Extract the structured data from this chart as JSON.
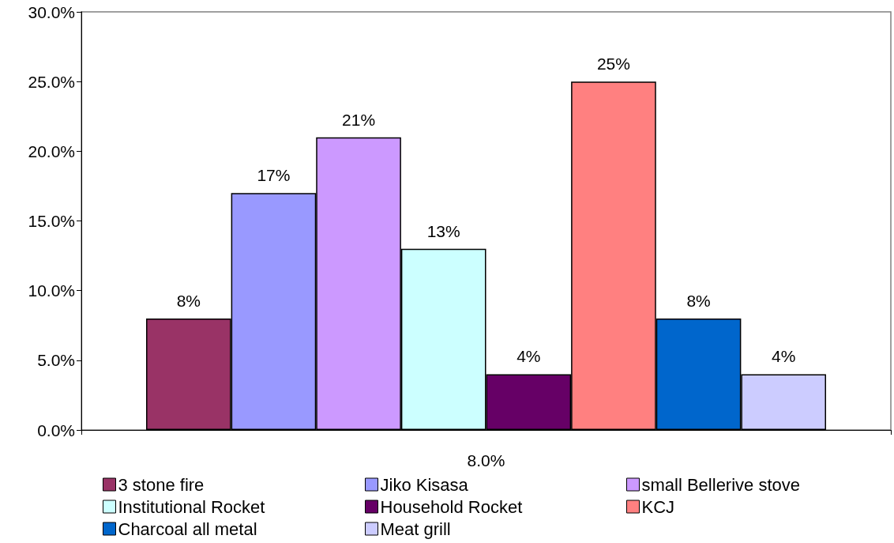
{
  "chart_data": {
    "type": "bar",
    "categories": [
      "8.0%"
    ],
    "series": [
      {
        "name": "3 stone fire",
        "color": "#993366",
        "values": [
          8
        ],
        "value_labels": [
          "8%"
        ]
      },
      {
        "name": "Jiko Kisasa",
        "color": "#9999ff",
        "values": [
          17
        ],
        "value_labels": [
          "17%"
        ]
      },
      {
        "name": "small Bellerive stove",
        "color": "#cc99ff",
        "values": [
          21
        ],
        "value_labels": [
          "21%"
        ]
      },
      {
        "name": "Institutional Rocket",
        "color": "#ccffff",
        "values": [
          13
        ],
        "value_labels": [
          "13%"
        ]
      },
      {
        "name": "Household Rocket",
        "color": "#660066",
        "values": [
          4
        ],
        "value_labels": [
          "4%"
        ]
      },
      {
        "name": "KCJ",
        "color": "#ff8080",
        "values": [
          25
        ],
        "value_labels": [
          "25%"
        ]
      },
      {
        "name": "Charcoal all metal",
        "color": "#0066cc",
        "values": [
          8
        ],
        "value_labels": [
          "8%"
        ]
      },
      {
        "name": "Meat grill",
        "color": "#ccccff",
        "values": [
          4
        ],
        "value_labels": [
          "4%"
        ]
      }
    ],
    "ylim": [
      0,
      30
    ],
    "yticks": [
      {
        "value": 0,
        "label": "0.0%"
      },
      {
        "value": 5,
        "label": "5.0%"
      },
      {
        "value": 10,
        "label": "10.0%"
      },
      {
        "value": 15,
        "label": "15.0%"
      },
      {
        "value": 20,
        "label": "20.0%"
      },
      {
        "value": 25,
        "label": "25.0%"
      },
      {
        "value": 30,
        "label": "30.0%"
      }
    ],
    "grid": false,
    "legend": "bottom"
  }
}
